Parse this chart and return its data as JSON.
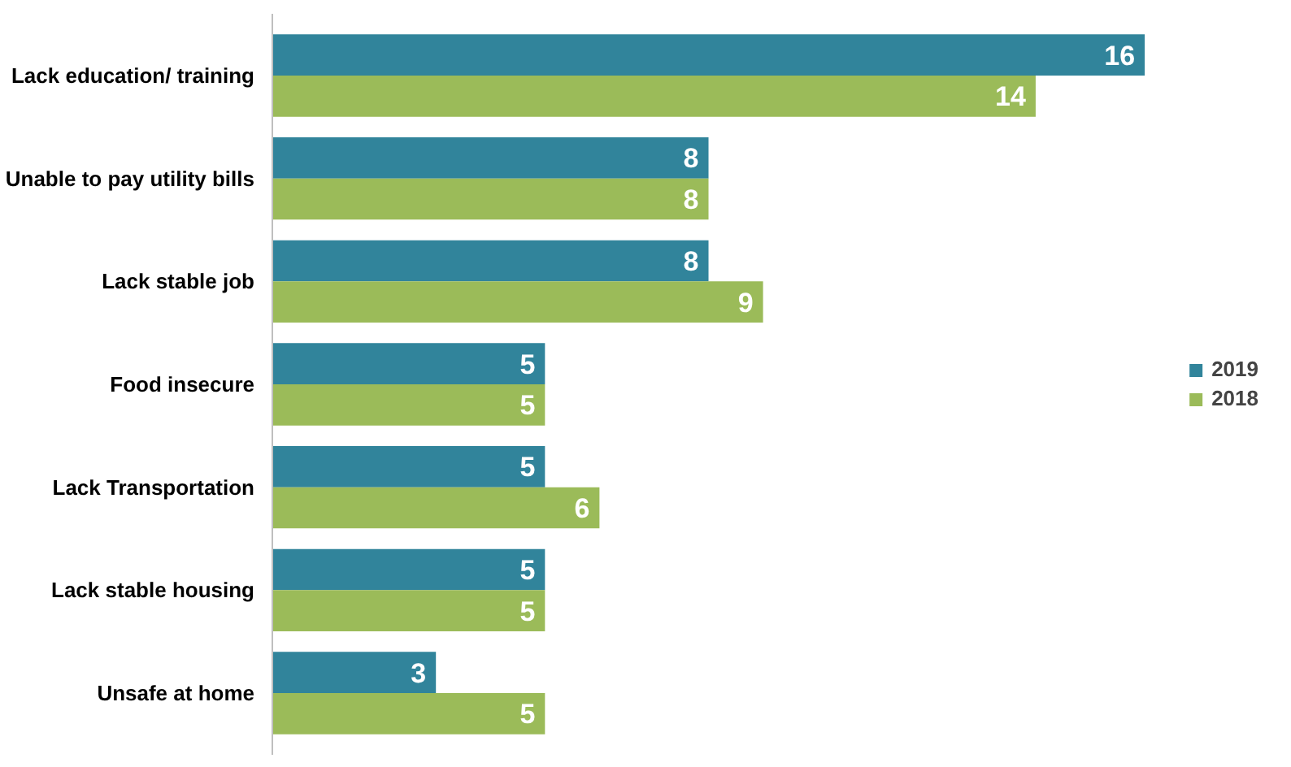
{
  "chart_data": {
    "type": "bar",
    "orientation": "horizontal",
    "categories": [
      "Lack education/ training",
      "Unable to pay utility bills",
      "Lack stable job",
      "Food insecure",
      "Lack Transportation",
      "Lack stable housing",
      "Unsafe at home"
    ],
    "series": [
      {
        "name": "2019",
        "color": "#31849b",
        "values": [
          16,
          8,
          8,
          5,
          5,
          5,
          3
        ]
      },
      {
        "name": "2018",
        "color": "#9bbb59",
        "values": [
          14,
          8,
          9,
          5,
          6,
          5,
          5
        ]
      }
    ],
    "data_labels": true,
    "legend": "right",
    "grid": false
  }
}
